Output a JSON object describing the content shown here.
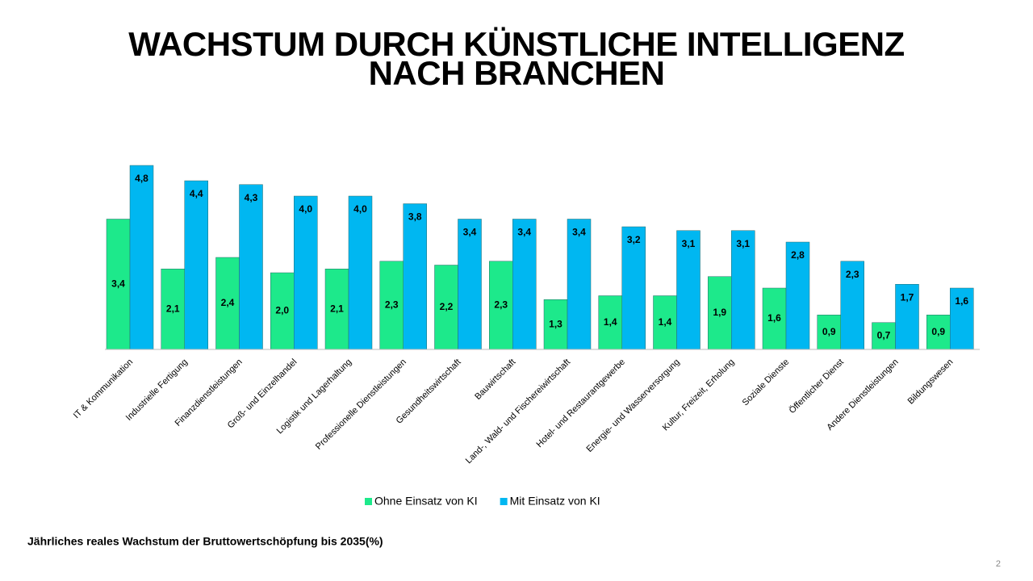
{
  "chart_data": {
    "type": "bar",
    "title": [
      "WACHSTUM DURCH KÜNSTLICHE INTELLIGENZ",
      "NACH BRANCHEN"
    ],
    "categories": [
      "IT & Kommunikation",
      "Industrielle Fertigung",
      "Finanzdienstleistungen",
      "Groß- und Einzelhandel",
      "Logistik und Lagerhaltung",
      "Professionelle Dienstleistungen",
      "Gesundheitswirtschaft",
      "Bauwirtschaft",
      "Land-, Wald- und Fischereiwirtschaft",
      "Hotel- und Restaurantgewerbe",
      "Energie- und Wasserversorgung",
      "Kultur, Freizeit, Erholung",
      "Soziale Dienste",
      "Öffentlicher Dienst",
      "Andere Dienstleistungen",
      "Bildungswesen"
    ],
    "series": [
      {
        "name": "Ohne Einsatz von KI",
        "color": "#1de98b",
        "values": [
          3.4,
          2.1,
          2.4,
          2.0,
          2.1,
          2.3,
          2.2,
          2.3,
          1.3,
          1.4,
          1.4,
          1.9,
          1.6,
          0.9,
          0.7,
          0.9
        ],
        "value_labels": [
          "3,4",
          "2,1",
          "2,4",
          "2,0",
          "2,1",
          "2,3",
          "2,2",
          "2,3",
          "1,3",
          "1,4",
          "1,4",
          "1,9",
          "1,6",
          "0,9",
          "0,7",
          "0,9"
        ]
      },
      {
        "name": "Mit Einsatz von KI",
        "color": "#00b7f1",
        "values": [
          4.8,
          4.4,
          4.3,
          4.0,
          4.0,
          3.8,
          3.4,
          3.4,
          3.4,
          3.2,
          3.1,
          3.1,
          2.8,
          2.3,
          1.7,
          1.6
        ],
        "value_labels": [
          "4,8",
          "4,4",
          "4,3",
          "4,0",
          "4,0",
          "3,8",
          "3,4",
          "3,4",
          "3,4",
          "3,2",
          "3,1",
          "3,1",
          "2,8",
          "2,3",
          "1,7",
          "1,6"
        ]
      }
    ],
    "footnote": "Jährliches reales Wachstum der Bruttowertschöpfung bis 2035(%)",
    "page_number": "2"
  }
}
